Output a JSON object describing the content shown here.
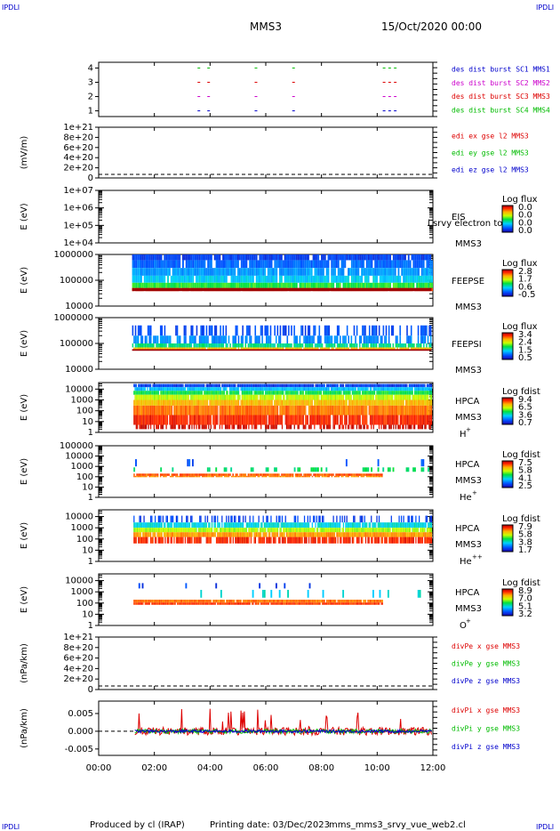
{
  "header": {
    "corner_tl": "IPDLI",
    "corner_tr": "IPDLI",
    "corner_bl": "IPDLI",
    "corner_br": "IPDLI",
    "spacecraft": "MMS3",
    "date": "15/Oct/2020 00:00"
  },
  "footer": {
    "produced": "Produced by cl (IRAP)",
    "printing": "Printing date: 03/Dec/2023",
    "script": "mms_mms3_srvy_vue_web2.cl"
  },
  "colors": {
    "blue": "#0000cc",
    "magenta": "#cc00cc",
    "red": "#dd0000",
    "green": "#00bb00"
  },
  "chart_data": [
    {
      "type": "scatter",
      "id": "burst",
      "ylabel": "",
      "yticks": [
        "1",
        "2",
        "3",
        "4"
      ],
      "ylim": [
        0.6,
        4.4
      ],
      "legend": [
        {
          "text": "des dist burst SC1 MMS1",
          "color": "#0000cc"
        },
        {
          "text": "des dist burst SC2 MMS2",
          "color": "#cc00cc"
        },
        {
          "text": "des dist burst SC3 MMS3",
          "color": "#dd0000"
        },
        {
          "text": "des dist burst SC4 MMS4",
          "color": "#00bb00"
        }
      ],
      "series": [
        {
          "level": 4,
          "color": "#00bb00",
          "x": [
            3.55,
            3.9,
            5.6,
            6.95,
            10.2,
            10.4,
            10.6
          ]
        },
        {
          "level": 3,
          "color": "#dd0000",
          "x": [
            3.55,
            3.9,
            5.6,
            6.95,
            10.2,
            10.4,
            10.6
          ]
        },
        {
          "level": 2,
          "color": "#cc00cc",
          "x": [
            3.55,
            3.9,
            5.6,
            6.95,
            10.2,
            10.4,
            10.6
          ]
        },
        {
          "level": 1,
          "color": "#0000cc",
          "x": [
            3.55,
            3.9,
            5.6,
            6.95,
            10.2,
            10.4,
            10.6
          ]
        }
      ]
    },
    {
      "type": "line",
      "id": "edi",
      "ylabel": "(mV/m)",
      "yticks": [
        "0",
        "2e+20",
        "4e+20",
        "6e+20",
        "8e+20",
        "1e+21"
      ],
      "ylim": [
        0,
        1e+21
      ],
      "legend": [
        {
          "text": "edi ex gse l2 MMS3",
          "color": "#dd0000"
        },
        {
          "text": "edi ey gse l2 MMS3",
          "color": "#00bb00"
        },
        {
          "text": "edi ez gse l2 MMS3",
          "color": "#0000cc"
        }
      ]
    },
    {
      "type": "heatmap",
      "id": "eis",
      "ylabel": "E (eV)",
      "yticks": [
        "1e+04",
        "1e+05",
        "1e+06",
        "1e+07"
      ],
      "ylim": [
        10000,
        10000000
      ],
      "log_y": true,
      "instrument": [
        "EIS",
        "MMS3"
      ],
      "overlay_text": "l srvy electron to",
      "cbar_title": "Log flux",
      "cbar_ticks": [
        "0.0",
        "0.0",
        "0.0",
        "0.0"
      ]
    },
    {
      "type": "heatmap",
      "id": "feepse",
      "ylabel": "E (eV)",
      "yticks": [
        "10000",
        "100000",
        "1000000"
      ],
      "ylim": [
        10000,
        1000000
      ],
      "log_y": true,
      "instrument": [
        "FEEPSE",
        "MMS3"
      ],
      "cbar_title": "Log flux",
      "cbar_ticks": [
        "2.8",
        "1.7",
        "0.6",
        "-0.5"
      ]
    },
    {
      "type": "heatmap",
      "id": "feepsi",
      "ylabel": "E (eV)",
      "yticks": [
        "10000",
        "100000",
        "1000000"
      ],
      "ylim": [
        10000,
        1000000
      ],
      "log_y": true,
      "instrument": [
        "FEEPSI",
        "MMS3"
      ],
      "cbar_title": "Log flux",
      "cbar_ticks": [
        "3.4",
        "2.4",
        "1.5",
        "0.5"
      ]
    },
    {
      "type": "heatmap",
      "id": "hpca_h",
      "ylabel": "E (eV)",
      "yticks": [
        "1",
        "10",
        "100",
        "1000",
        "10000"
      ],
      "ylim": [
        1,
        40000
      ],
      "log_y": true,
      "instrument": [
        "HPCA",
        "MMS3"
      ],
      "species": "H",
      "species_sup": "+",
      "cbar_title": "Log fdist",
      "cbar_ticks": [
        "9.4",
        "6.5",
        "3.6",
        "0.7"
      ]
    },
    {
      "type": "heatmap",
      "id": "hpca_he1",
      "ylabel": "E (eV)",
      "yticks": [
        "1",
        "10",
        "100",
        "1000",
        "10000",
        "100000"
      ],
      "ylim": [
        1,
        100000
      ],
      "log_y": true,
      "instrument": [
        "HPCA",
        "MMS3"
      ],
      "species": "He",
      "species_sup": "+",
      "cbar_title": "Log fdist",
      "cbar_ticks": [
        "7.5",
        "5.8",
        "4.1",
        "2.5"
      ]
    },
    {
      "type": "heatmap",
      "id": "hpca_he2",
      "ylabel": "E (eV)",
      "yticks": [
        "1",
        "10",
        "100",
        "1000",
        "10000"
      ],
      "ylim": [
        1,
        40000
      ],
      "log_y": true,
      "instrument": [
        "HPCA",
        "MMS3"
      ],
      "species": "He",
      "species_sup": "++",
      "cbar_title": "Log fdist",
      "cbar_ticks": [
        "7.9",
        "5.8",
        "3.8",
        "1.7"
      ]
    },
    {
      "type": "heatmap",
      "id": "hpca_o",
      "ylabel": "E (eV)",
      "yticks": [
        "1",
        "10",
        "100",
        "1000",
        "10000"
      ],
      "ylim": [
        1,
        40000
      ],
      "log_y": true,
      "instrument": [
        "HPCA",
        "MMS3"
      ],
      "species": "O",
      "species_sup": "+",
      "cbar_title": "Log fdist",
      "cbar_ticks": [
        "8.9",
        "7.0",
        "5.1",
        "3.2"
      ]
    },
    {
      "type": "line",
      "id": "divpe",
      "ylabel": "(nPa/km)",
      "yticks": [
        "0",
        "2e+20",
        "4e+20",
        "6e+20",
        "8e+20",
        "1e+21"
      ],
      "ylim": [
        0,
        1e+21
      ],
      "legend": [
        {
          "text": "divPe x gse MMS3",
          "color": "#dd0000"
        },
        {
          "text": "divPe y gse MMS3",
          "color": "#00bb00"
        },
        {
          "text": "divPe z gse MMS3",
          "color": "#0000cc"
        }
      ]
    },
    {
      "type": "line",
      "id": "divpi",
      "ylabel": "(nPa/km)",
      "yticks": [
        "-0.005",
        "0.000",
        "0.005"
      ],
      "ylim": [
        -0.0068,
        0.0085
      ],
      "legend": [
        {
          "text": "divPi x gse MMS3",
          "color": "#dd0000"
        },
        {
          "text": "divPi y gse MMS3",
          "color": "#00bb00"
        },
        {
          "text": "divPi z gse MMS3",
          "color": "#0000cc"
        }
      ]
    }
  ],
  "x_axis": {
    "ticks": [
      "00:00",
      "02:00",
      "04:00",
      "06:00",
      "08:00",
      "10:00",
      "12:00"
    ],
    "xlim": [
      0,
      12
    ]
  }
}
